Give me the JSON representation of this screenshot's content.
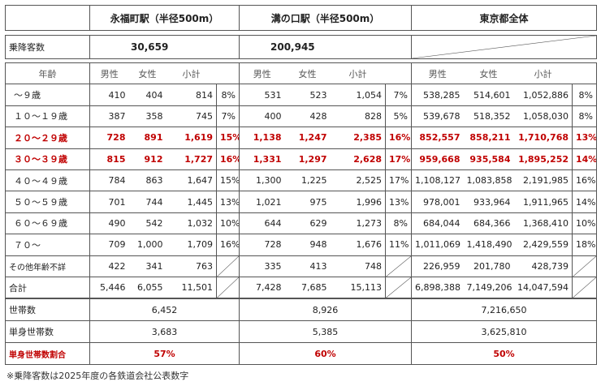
{
  "header": {
    "area1": "永福町駅（半径500m）",
    "area2": "溝の口駅（半径500m）",
    "area3": "東京都全体"
  },
  "boarding": {
    "label": "乗降客数",
    "area1": "30,659",
    "area2": "200,945"
  },
  "columns": {
    "age": "年齢",
    "male": "男性",
    "female": "女性",
    "subtotal": "小計"
  },
  "rows": [
    {
      "label": "～９歳",
      "highlight": false,
      "a1": [
        "410",
        "404",
        "814",
        "8%"
      ],
      "a2": [
        "531",
        "523",
        "1,054",
        "7%"
      ],
      "a3": [
        "538,285",
        "514,601",
        "1,052,886",
        "8%"
      ]
    },
    {
      "label": "１０～１９歳",
      "highlight": false,
      "a1": [
        "387",
        "358",
        "745",
        "7%"
      ],
      "a2": [
        "400",
        "428",
        "828",
        "5%"
      ],
      "a3": [
        "539,678",
        "518,352",
        "1,058,030",
        "8%"
      ]
    },
    {
      "label": "２０～２９歳",
      "highlight": true,
      "a1": [
        "728",
        "891",
        "1,619",
        "15%"
      ],
      "a2": [
        "1,138",
        "1,247",
        "2,385",
        "16%"
      ],
      "a3": [
        "852,557",
        "858,211",
        "1,710,768",
        "13%"
      ]
    },
    {
      "label": "３０～３９歳",
      "highlight": true,
      "a1": [
        "815",
        "912",
        "1,727",
        "16%"
      ],
      "a2": [
        "1,331",
        "1,297",
        "2,628",
        "17%"
      ],
      "a3": [
        "959,668",
        "935,584",
        "1,895,252",
        "14%"
      ]
    },
    {
      "label": "４０～４９歳",
      "highlight": false,
      "a1": [
        "784",
        "863",
        "1,647",
        "15%"
      ],
      "a2": [
        "1,300",
        "1,225",
        "2,525",
        "17%"
      ],
      "a3": [
        "1,108,127",
        "1,083,858",
        "2,191,985",
        "16%"
      ]
    },
    {
      "label": "５０～５９歳",
      "highlight": false,
      "a1": [
        "701",
        "744",
        "1,445",
        "13%"
      ],
      "a2": [
        "1,021",
        "975",
        "1,996",
        "13%"
      ],
      "a3": [
        "978,001",
        "933,964",
        "1,911,965",
        "14%"
      ]
    },
    {
      "label": "６０～６９歳",
      "highlight": false,
      "a1": [
        "490",
        "542",
        "1,032",
        "10%"
      ],
      "a2": [
        "644",
        "629",
        "1,273",
        "8%"
      ],
      "a3": [
        "684,044",
        "684,366",
        "1,368,410",
        "10%"
      ]
    },
    {
      "label": "７０～",
      "highlight": false,
      "a1": [
        "709",
        "1,000",
        "1,709",
        "16%"
      ],
      "a2": [
        "728",
        "948",
        "1,676",
        "11%"
      ],
      "a3": [
        "1,011,069",
        "1,418,490",
        "2,429,559",
        "18%"
      ]
    },
    {
      "label": "その他年齢不詳",
      "highlight": false,
      "small": true,
      "a1": [
        "422",
        "341",
        "763",
        ""
      ],
      "a2": [
        "335",
        "413",
        "748",
        ""
      ],
      "a3": [
        "226,959",
        "201,780",
        "428,739",
        ""
      ]
    },
    {
      "label": "合計",
      "highlight": false,
      "a1": [
        "5,446",
        "6,055",
        "11,501",
        ""
      ],
      "a2": [
        "7,428",
        "7,685",
        "15,113",
        ""
      ],
      "a3": [
        "6,898,388",
        "7,149,206",
        "14,047,594",
        ""
      ]
    }
  ],
  "households": [
    {
      "label": "世帯数",
      "highlight": false,
      "values": [
        "6,452",
        "8,926",
        "7,216,650"
      ]
    },
    {
      "label": "単身世帯数",
      "highlight": false,
      "values": [
        "3,683",
        "5,385",
        "3,625,810"
      ]
    },
    {
      "label": "単身世帯数割合",
      "highlight": true,
      "values": [
        "57%",
        "60%",
        "50%"
      ]
    }
  ],
  "note": "※乗降客数は2025年度の各鉄道会社公表数字"
}
